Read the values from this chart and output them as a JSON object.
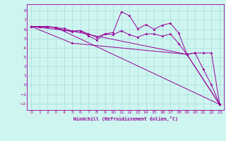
{
  "background_color": "#cef5f0",
  "grid_color": "#aadddd",
  "line_color": "#990099",
  "xlabel": "Windchill (Refroidissement éolien,°C)",
  "xlim": [
    -0.5,
    23.5
  ],
  "ylim": [
    -2.7,
    8.7
  ],
  "xticks": [
    0,
    1,
    2,
    3,
    4,
    5,
    6,
    7,
    8,
    9,
    10,
    11,
    12,
    13,
    14,
    15,
    16,
    17,
    18,
    19,
    20,
    21,
    22,
    23
  ],
  "yticks": [
    -2,
    -1,
    0,
    1,
    2,
    3,
    4,
    5,
    6,
    7,
    8
  ],
  "line1_x": [
    0,
    1,
    2,
    3,
    4,
    5,
    6,
    7,
    8,
    9,
    10,
    11,
    12,
    13,
    14,
    15,
    16,
    17,
    18,
    19,
    20,
    21,
    22,
    23
  ],
  "line1_y": [
    6.3,
    6.3,
    6.3,
    6.15,
    6.1,
    5.8,
    5.85,
    5.5,
    5.15,
    5.5,
    5.65,
    7.9,
    7.45,
    6.05,
    6.5,
    6.0,
    6.45,
    6.65,
    5.6,
    3.3,
    3.45,
    1.7,
    0.0,
    -2.1
  ],
  "line2_x": [
    0,
    1,
    2,
    3,
    4,
    5,
    6,
    7,
    8,
    9,
    10,
    11,
    12,
    13,
    14,
    15,
    16,
    17,
    18,
    19,
    20,
    21,
    22,
    23
  ],
  "line2_y": [
    6.3,
    6.3,
    6.3,
    6.2,
    5.9,
    5.75,
    5.85,
    5.3,
    4.85,
    5.5,
    5.4,
    5.85,
    5.4,
    5.15,
    5.5,
    5.5,
    5.25,
    5.5,
    4.45,
    3.3,
    3.45,
    3.45,
    3.45,
    -2.1
  ],
  "line3_x": [
    0,
    3,
    23
  ],
  "line3_y": [
    6.3,
    6.2,
    -2.1
  ],
  "line4_x": [
    0,
    5,
    19,
    23
  ],
  "line4_y": [
    6.3,
    4.5,
    3.3,
    -2.1
  ],
  "line5_x": [
    0,
    5,
    19,
    23
  ],
  "line5_y": [
    6.3,
    5.8,
    3.3,
    -2.1
  ]
}
